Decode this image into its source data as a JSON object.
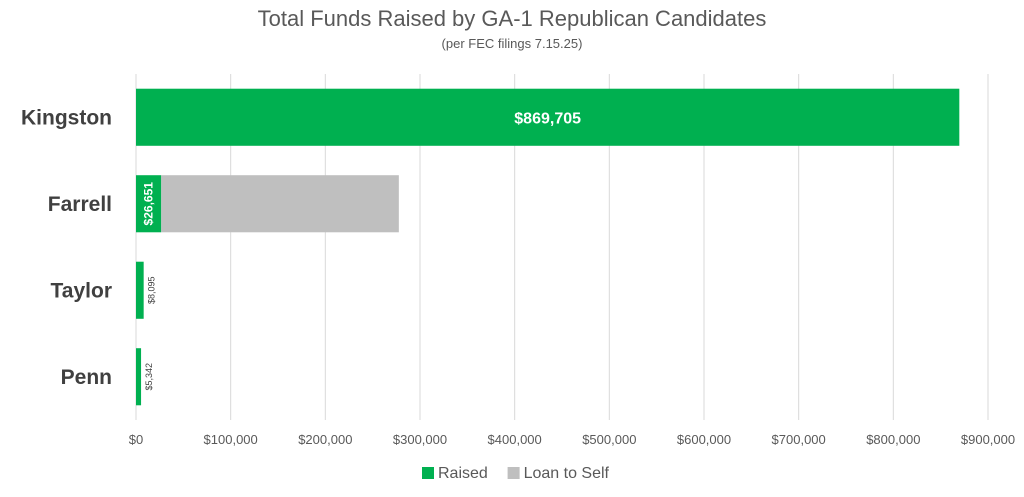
{
  "chart_data": {
    "type": "bar",
    "orientation": "horizontal",
    "stacked": true,
    "title": "Total Funds Raised by GA-1 Republican Candidates",
    "subtitle": "(per FEC filings 7.15.25)",
    "categories": [
      "Kingston",
      "Farrell",
      "Taylor",
      "Penn"
    ],
    "series": [
      {
        "name": "Raised",
        "color": "#00b050",
        "values": [
          869705,
          26651,
          8095,
          5342
        ],
        "data_labels": [
          "$869,705",
          "$26,651",
          "$8,095",
          "$5,342"
        ]
      },
      {
        "name": "Loan to Self",
        "color": "#bfbfbf",
        "values": [
          0,
          251000,
          0,
          0
        ],
        "data_labels": [
          "",
          "",
          "",
          ""
        ]
      }
    ],
    "xlim": [
      0,
      900000
    ],
    "xticks": [
      0,
      100000,
      200000,
      300000,
      400000,
      500000,
      600000,
      700000,
      800000,
      900000
    ],
    "xtick_labels": [
      "$0",
      "$100,000",
      "$200,000",
      "$300,000",
      "$400,000",
      "$500,000",
      "$600,000",
      "$700,000",
      "$800,000",
      "$900,000"
    ],
    "grid": true,
    "legend_position": "bottom"
  }
}
